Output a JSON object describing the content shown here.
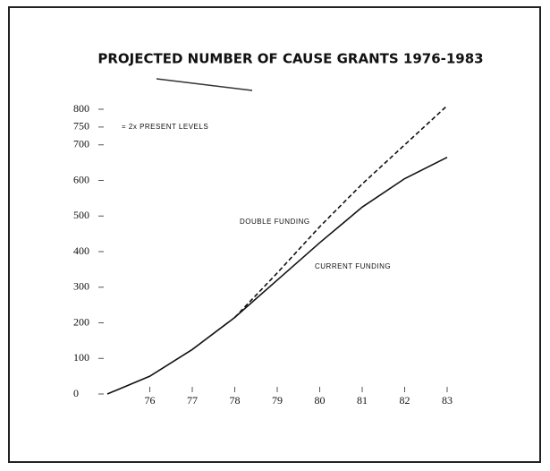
{
  "chart_data": {
    "type": "line",
    "title": "PROJECTED NUMBER OF CAUSE GRANTS 1976-1983",
    "annotation": "= 2x PRESENT LEVELS",
    "x": [
      75,
      76,
      77,
      78,
      79,
      80,
      81,
      82,
      83
    ],
    "series": [
      {
        "name": "CURRENT FUNDING",
        "color": "#111111",
        "dashed": false,
        "values": [
          0,
          50,
          125,
          215,
          320,
          425,
          525,
          605,
          665
        ]
      },
      {
        "name": "DOUBLE FUNDING",
        "color": "#111111",
        "dashed": true,
        "values": [
          null,
          null,
          null,
          215,
          340,
          470,
          590,
          700,
          810
        ]
      }
    ],
    "xlim": [
      75,
      83
    ],
    "xticks": [
      76,
      77,
      78,
      79,
      80,
      81,
      82,
      83
    ],
    "ylim": [
      0,
      800
    ],
    "yticks": [
      0,
      100,
      200,
      300,
      400,
      500,
      600,
      700,
      750,
      800
    ],
    "grid": false
  }
}
